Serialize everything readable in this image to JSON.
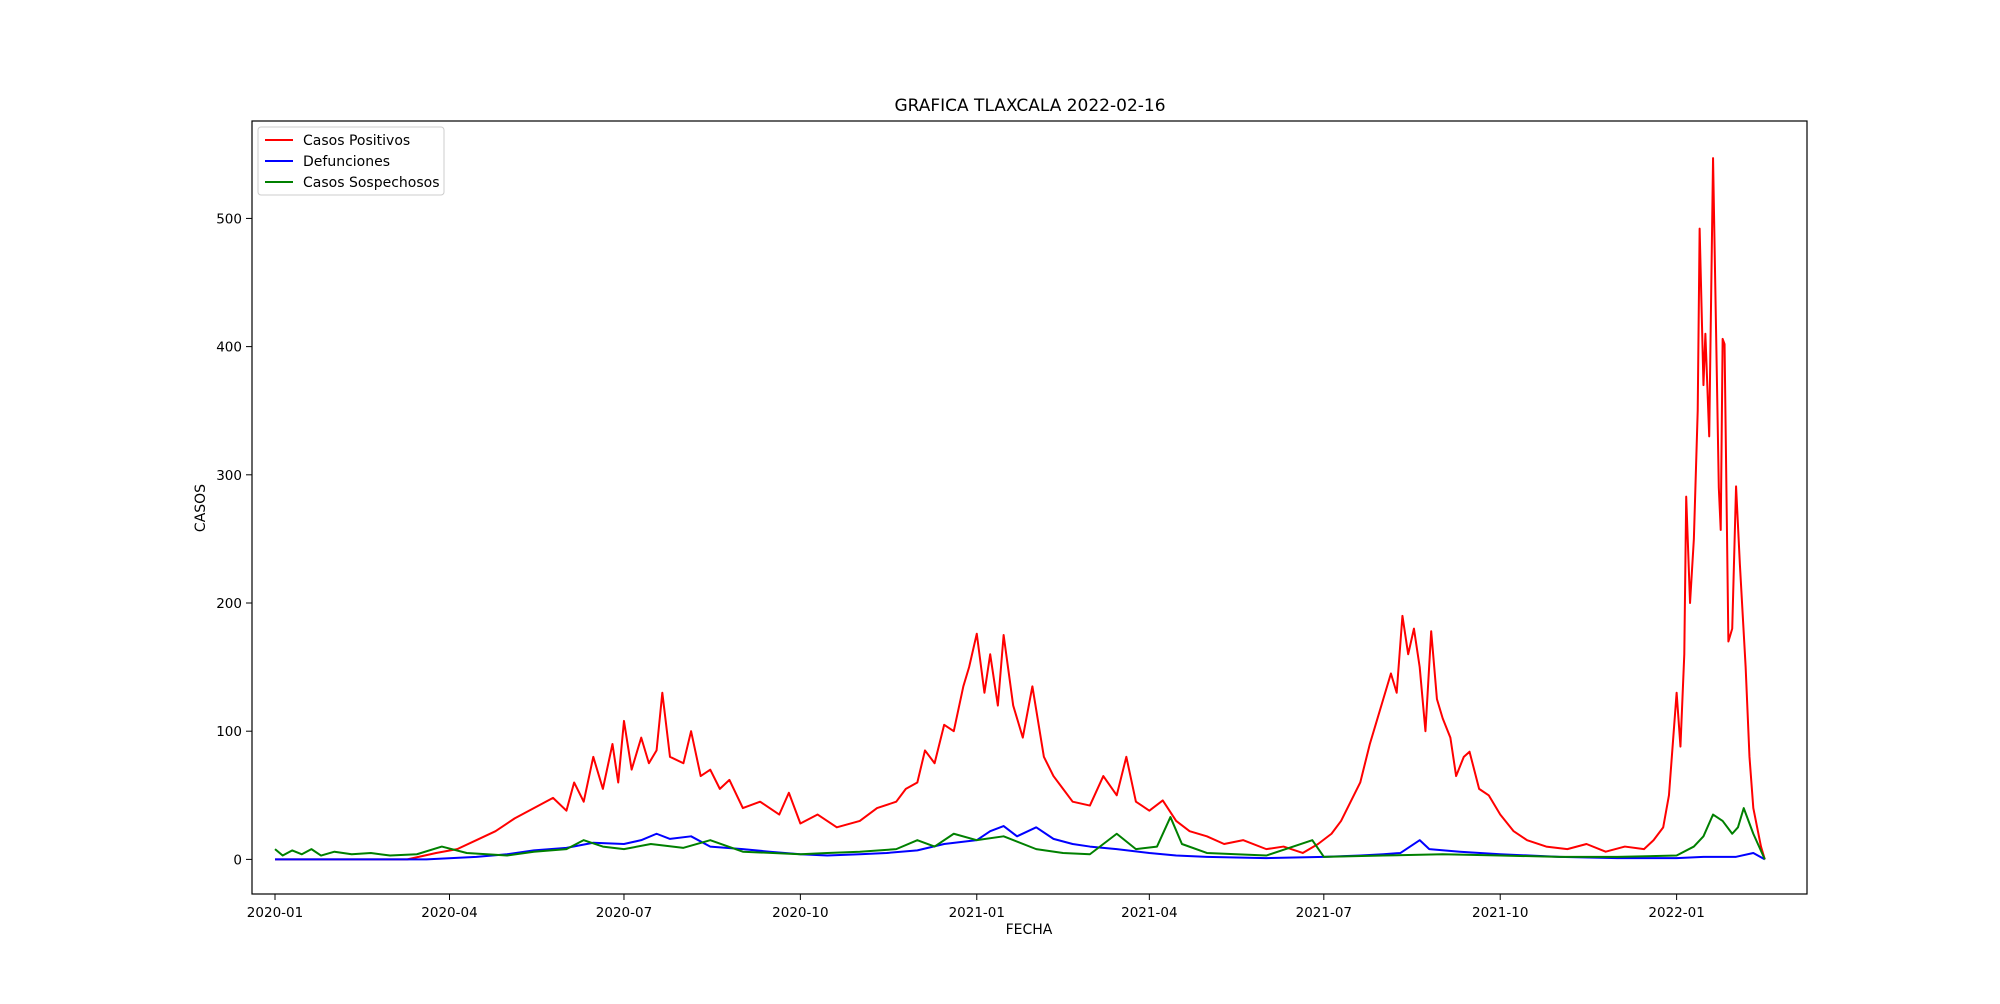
{
  "chart_data": {
    "type": "line",
    "title": "GRAFICA TLAXCALA 2022-02-16",
    "xlabel": "FECHA",
    "ylabel": "CASOS",
    "x_range": [
      "2019-12-20",
      "2022-03-10"
    ],
    "ylim": [
      -27,
      576
    ],
    "grid": false,
    "legend_position": "upper-left",
    "x_ticks": [
      {
        "date": "2020-01-01",
        "label": "2020-01"
      },
      {
        "date": "2020-04-01",
        "label": "2020-04"
      },
      {
        "date": "2020-07-01",
        "label": "2020-07"
      },
      {
        "date": "2020-10-01",
        "label": "2020-10"
      },
      {
        "date": "2021-01-01",
        "label": "2021-01"
      },
      {
        "date": "2021-04-01",
        "label": "2021-04"
      },
      {
        "date": "2021-07-01",
        "label": "2021-07"
      },
      {
        "date": "2021-10-01",
        "label": "2021-10"
      },
      {
        "date": "2022-01-01",
        "label": "2022-01"
      }
    ],
    "y_ticks": [
      {
        "value": 0,
        "label": "0"
      },
      {
        "value": 100,
        "label": "100"
      },
      {
        "value": 200,
        "label": "200"
      },
      {
        "value": 300,
        "label": "300"
      },
      {
        "value": 400,
        "label": "400"
      },
      {
        "value": 500,
        "label": "500"
      }
    ],
    "series": [
      {
        "name": "Casos Positivos",
        "color": "#ff0000",
        "points": [
          [
            "2020-01-01",
            0
          ],
          [
            "2020-03-10",
            0
          ],
          [
            "2020-03-25",
            5
          ],
          [
            "2020-04-05",
            8
          ],
          [
            "2020-04-15",
            15
          ],
          [
            "2020-04-25",
            22
          ],
          [
            "2020-05-05",
            32
          ],
          [
            "2020-05-15",
            40
          ],
          [
            "2020-05-25",
            48
          ],
          [
            "2020-06-01",
            38
          ],
          [
            "2020-06-05",
            60
          ],
          [
            "2020-06-10",
            45
          ],
          [
            "2020-06-15",
            80
          ],
          [
            "2020-06-20",
            55
          ],
          [
            "2020-06-25",
            90
          ],
          [
            "2020-06-28",
            60
          ],
          [
            "2020-07-01",
            108
          ],
          [
            "2020-07-05",
            70
          ],
          [
            "2020-07-10",
            95
          ],
          [
            "2020-07-14",
            75
          ],
          [
            "2020-07-18",
            85
          ],
          [
            "2020-07-21",
            130
          ],
          [
            "2020-07-25",
            80
          ],
          [
            "2020-08-01",
            75
          ],
          [
            "2020-08-05",
            100
          ],
          [
            "2020-08-10",
            65
          ],
          [
            "2020-08-15",
            70
          ],
          [
            "2020-08-20",
            55
          ],
          [
            "2020-08-25",
            62
          ],
          [
            "2020-09-01",
            40
          ],
          [
            "2020-09-10",
            45
          ],
          [
            "2020-09-20",
            35
          ],
          [
            "2020-09-25",
            52
          ],
          [
            "2020-10-01",
            28
          ],
          [
            "2020-10-10",
            35
          ],
          [
            "2020-10-20",
            25
          ],
          [
            "2020-11-01",
            30
          ],
          [
            "2020-11-10",
            40
          ],
          [
            "2020-11-20",
            45
          ],
          [
            "2020-11-25",
            55
          ],
          [
            "2020-12-01",
            60
          ],
          [
            "2020-12-05",
            85
          ],
          [
            "2020-12-10",
            75
          ],
          [
            "2020-12-15",
            105
          ],
          [
            "2020-12-20",
            100
          ],
          [
            "2020-12-25",
            135
          ],
          [
            "2020-12-28",
            150
          ],
          [
            "2021-01-01",
            176
          ],
          [
            "2021-01-05",
            130
          ],
          [
            "2021-01-08",
            160
          ],
          [
            "2021-01-12",
            120
          ],
          [
            "2021-01-15",
            175
          ],
          [
            "2021-01-20",
            120
          ],
          [
            "2021-01-25",
            95
          ],
          [
            "2021-01-30",
            135
          ],
          [
            "2021-02-05",
            80
          ],
          [
            "2021-02-10",
            65
          ],
          [
            "2021-02-15",
            55
          ],
          [
            "2021-02-20",
            45
          ],
          [
            "2021-03-01",
            42
          ],
          [
            "2021-03-08",
            65
          ],
          [
            "2021-03-15",
            50
          ],
          [
            "2021-03-20",
            80
          ],
          [
            "2021-03-25",
            45
          ],
          [
            "2021-04-01",
            38
          ],
          [
            "2021-04-08",
            46
          ],
          [
            "2021-04-15",
            30
          ],
          [
            "2021-04-22",
            22
          ],
          [
            "2021-05-01",
            18
          ],
          [
            "2021-05-10",
            12
          ],
          [
            "2021-05-20",
            15
          ],
          [
            "2021-06-01",
            8
          ],
          [
            "2021-06-10",
            10
          ],
          [
            "2021-06-20",
            5
          ],
          [
            "2021-06-28",
            12
          ],
          [
            "2021-07-05",
            20
          ],
          [
            "2021-07-10",
            30
          ],
          [
            "2021-07-15",
            45
          ],
          [
            "2021-07-20",
            60
          ],
          [
            "2021-07-25",
            90
          ],
          [
            "2021-07-28",
            105
          ],
          [
            "2021-08-01",
            125
          ],
          [
            "2021-08-05",
            145
          ],
          [
            "2021-08-08",
            130
          ],
          [
            "2021-08-11",
            190
          ],
          [
            "2021-08-14",
            160
          ],
          [
            "2021-08-17",
            180
          ],
          [
            "2021-08-20",
            150
          ],
          [
            "2021-08-23",
            100
          ],
          [
            "2021-08-26",
            178
          ],
          [
            "2021-08-29",
            125
          ],
          [
            "2021-09-01",
            110
          ],
          [
            "2021-09-05",
            95
          ],
          [
            "2021-09-08",
            65
          ],
          [
            "2021-09-12",
            80
          ],
          [
            "2021-09-15",
            84
          ],
          [
            "2021-09-20",
            55
          ],
          [
            "2021-09-25",
            50
          ],
          [
            "2021-10-01",
            35
          ],
          [
            "2021-10-08",
            22
          ],
          [
            "2021-10-15",
            15
          ],
          [
            "2021-10-25",
            10
          ],
          [
            "2021-11-05",
            8
          ],
          [
            "2021-11-15",
            12
          ],
          [
            "2021-11-25",
            6
          ],
          [
            "2021-12-05",
            10
          ],
          [
            "2021-12-15",
            8
          ],
          [
            "2021-12-20",
            15
          ],
          [
            "2021-12-25",
            25
          ],
          [
            "2021-12-28",
            50
          ],
          [
            "2022-01-01",
            130
          ],
          [
            "2022-01-03",
            88
          ],
          [
            "2022-01-05",
            160
          ],
          [
            "2022-01-06",
            283
          ],
          [
            "2022-01-08",
            200
          ],
          [
            "2022-01-10",
            250
          ],
          [
            "2022-01-12",
            350
          ],
          [
            "2022-01-13",
            492
          ],
          [
            "2022-01-15",
            370
          ],
          [
            "2022-01-16",
            410
          ],
          [
            "2022-01-18",
            330
          ],
          [
            "2022-01-20",
            547
          ],
          [
            "2022-01-23",
            290
          ],
          [
            "2022-01-24",
            257
          ],
          [
            "2022-01-25",
            406
          ],
          [
            "2022-01-26",
            402
          ],
          [
            "2022-01-28",
            170
          ],
          [
            "2022-01-30",
            180
          ],
          [
            "2022-02-01",
            291
          ],
          [
            "2022-02-03",
            230
          ],
          [
            "2022-02-06",
            150
          ],
          [
            "2022-02-08",
            80
          ],
          [
            "2022-02-10",
            40
          ],
          [
            "2022-02-14",
            10
          ],
          [
            "2022-02-16",
            0
          ]
        ]
      },
      {
        "name": "Defunciones",
        "color": "#0000ff",
        "points": [
          [
            "2020-01-01",
            0
          ],
          [
            "2020-03-20",
            0
          ],
          [
            "2020-04-15",
            2
          ],
          [
            "2020-05-01",
            4
          ],
          [
            "2020-05-15",
            7
          ],
          [
            "2020-06-01",
            9
          ],
          [
            "2020-06-15",
            13
          ],
          [
            "2020-07-01",
            12
          ],
          [
            "2020-07-10",
            15
          ],
          [
            "2020-07-18",
            20
          ],
          [
            "2020-07-25",
            16
          ],
          [
            "2020-08-05",
            18
          ],
          [
            "2020-08-15",
            10
          ],
          [
            "2020-09-01",
            8
          ],
          [
            "2020-09-15",
            6
          ],
          [
            "2020-10-01",
            4
          ],
          [
            "2020-10-15",
            3
          ],
          [
            "2020-11-01",
            4
          ],
          [
            "2020-11-15",
            5
          ],
          [
            "2020-12-01",
            7
          ],
          [
            "2020-12-15",
            12
          ],
          [
            "2021-01-01",
            15
          ],
          [
            "2021-01-08",
            22
          ],
          [
            "2021-01-15",
            26
          ],
          [
            "2021-01-22",
            18
          ],
          [
            "2021-02-01",
            25
          ],
          [
            "2021-02-10",
            16
          ],
          [
            "2021-02-20",
            12
          ],
          [
            "2021-03-01",
            10
          ],
          [
            "2021-03-15",
            8
          ],
          [
            "2021-04-01",
            5
          ],
          [
            "2021-04-15",
            3
          ],
          [
            "2021-05-01",
            2
          ],
          [
            "2021-06-01",
            1
          ],
          [
            "2021-07-01",
            2
          ],
          [
            "2021-07-20",
            3
          ],
          [
            "2021-08-01",
            4
          ],
          [
            "2021-08-10",
            5
          ],
          [
            "2021-08-20",
            15
          ],
          [
            "2021-08-25",
            8
          ],
          [
            "2021-09-10",
            6
          ],
          [
            "2021-10-01",
            4
          ],
          [
            "2021-11-01",
            2
          ],
          [
            "2021-12-01",
            1
          ],
          [
            "2022-01-01",
            1
          ],
          [
            "2022-01-15",
            2
          ],
          [
            "2022-02-01",
            2
          ],
          [
            "2022-02-10",
            5
          ],
          [
            "2022-02-16",
            0
          ]
        ]
      },
      {
        "name": "Casos Sospechosos",
        "color": "#008000",
        "points": [
          [
            "2020-01-01",
            8
          ],
          [
            "2020-01-05",
            3
          ],
          [
            "2020-01-10",
            7
          ],
          [
            "2020-01-15",
            4
          ],
          [
            "2020-01-20",
            8
          ],
          [
            "2020-01-25",
            3
          ],
          [
            "2020-02-01",
            6
          ],
          [
            "2020-02-10",
            4
          ],
          [
            "2020-02-20",
            5
          ],
          [
            "2020-03-01",
            3
          ],
          [
            "2020-03-15",
            4
          ],
          [
            "2020-03-28",
            10
          ],
          [
            "2020-04-10",
            5
          ],
          [
            "2020-05-01",
            3
          ],
          [
            "2020-05-15",
            6
          ],
          [
            "2020-06-01",
            8
          ],
          [
            "2020-06-10",
            15
          ],
          [
            "2020-06-20",
            10
          ],
          [
            "2020-07-01",
            8
          ],
          [
            "2020-07-15",
            12
          ],
          [
            "2020-08-01",
            9
          ],
          [
            "2020-08-15",
            15
          ],
          [
            "2020-09-01",
            6
          ],
          [
            "2020-10-01",
            4
          ],
          [
            "2020-10-15",
            5
          ],
          [
            "2020-11-01",
            6
          ],
          [
            "2020-11-20",
            8
          ],
          [
            "2020-12-01",
            15
          ],
          [
            "2020-12-10",
            10
          ],
          [
            "2020-12-20",
            20
          ],
          [
            "2021-01-01",
            15
          ],
          [
            "2021-01-15",
            18
          ],
          [
            "2021-02-01",
            8
          ],
          [
            "2021-02-15",
            5
          ],
          [
            "2021-03-01",
            4
          ],
          [
            "2021-03-15",
            20
          ],
          [
            "2021-03-25",
            8
          ],
          [
            "2021-04-05",
            10
          ],
          [
            "2021-04-12",
            33
          ],
          [
            "2021-04-18",
            12
          ],
          [
            "2021-05-01",
            5
          ],
          [
            "2021-06-01",
            3
          ],
          [
            "2021-06-25",
            15
          ],
          [
            "2021-07-01",
            2
          ],
          [
            "2021-08-01",
            3
          ],
          [
            "2021-09-01",
            4
          ],
          [
            "2021-10-01",
            3
          ],
          [
            "2021-11-01",
            2
          ],
          [
            "2021-12-01",
            2
          ],
          [
            "2022-01-01",
            3
          ],
          [
            "2022-01-10",
            10
          ],
          [
            "2022-01-15",
            18
          ],
          [
            "2022-01-20",
            35
          ],
          [
            "2022-01-25",
            30
          ],
          [
            "2022-01-30",
            20
          ],
          [
            "2022-02-02",
            25
          ],
          [
            "2022-02-05",
            40
          ],
          [
            "2022-02-10",
            20
          ],
          [
            "2022-02-16",
            0
          ]
        ]
      }
    ]
  }
}
